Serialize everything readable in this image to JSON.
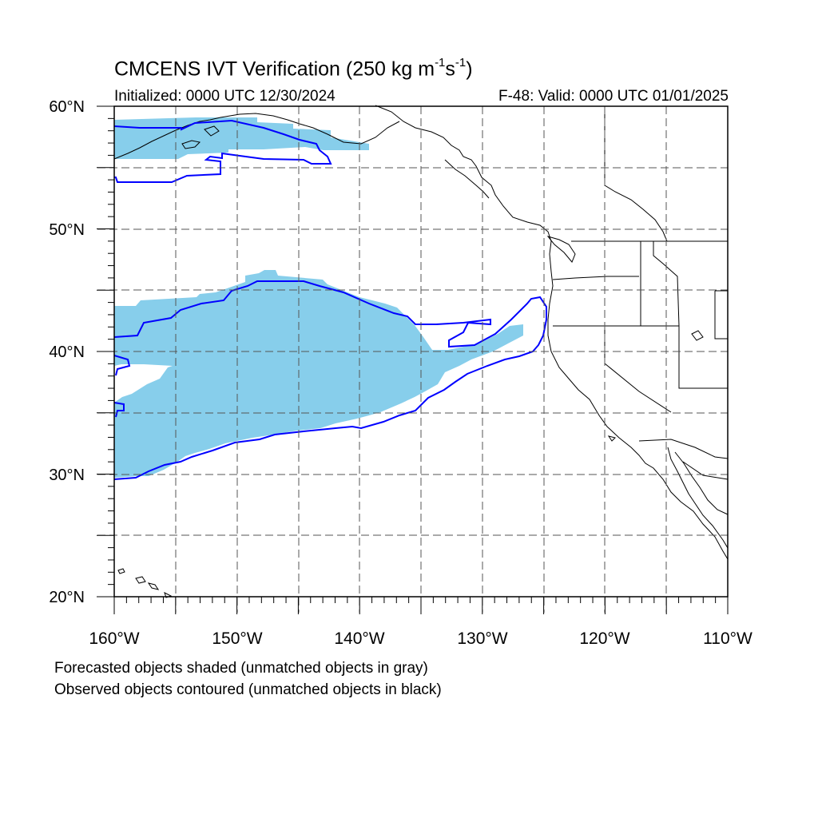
{
  "map": {
    "title_main": "CMCENS IVT Verification (250 kg m",
    "title_exp1": "-1",
    "title_mid": "s",
    "title_exp2": "-1",
    "title_end": ")",
    "initialized": "Initialized: 0000 UTC 12/30/2024",
    "valid": "F-48: Valid: 0000 UTC 01/01/2025",
    "footnote1": "Forecasted objects shaded (unmatched objects in gray)",
    "footnote2": "Observed objects contoured (unmatched objects in black)",
    "lat_labels": [
      "60°N",
      "50°N",
      "40°N",
      "30°N",
      "20°N"
    ],
    "lon_labels": [
      "160°W",
      "150°W",
      "140°W",
      "130°W",
      "120°W",
      "110°W"
    ],
    "extent": {
      "lon_min": -160,
      "lon_max": -110,
      "lat_min": 20,
      "lat_max": 60
    },
    "colors": {
      "forecast_fill": "#87ceeb",
      "observed_contour": "#0000ff",
      "coast": "#000000",
      "grid": "#555555"
    }
  }
}
